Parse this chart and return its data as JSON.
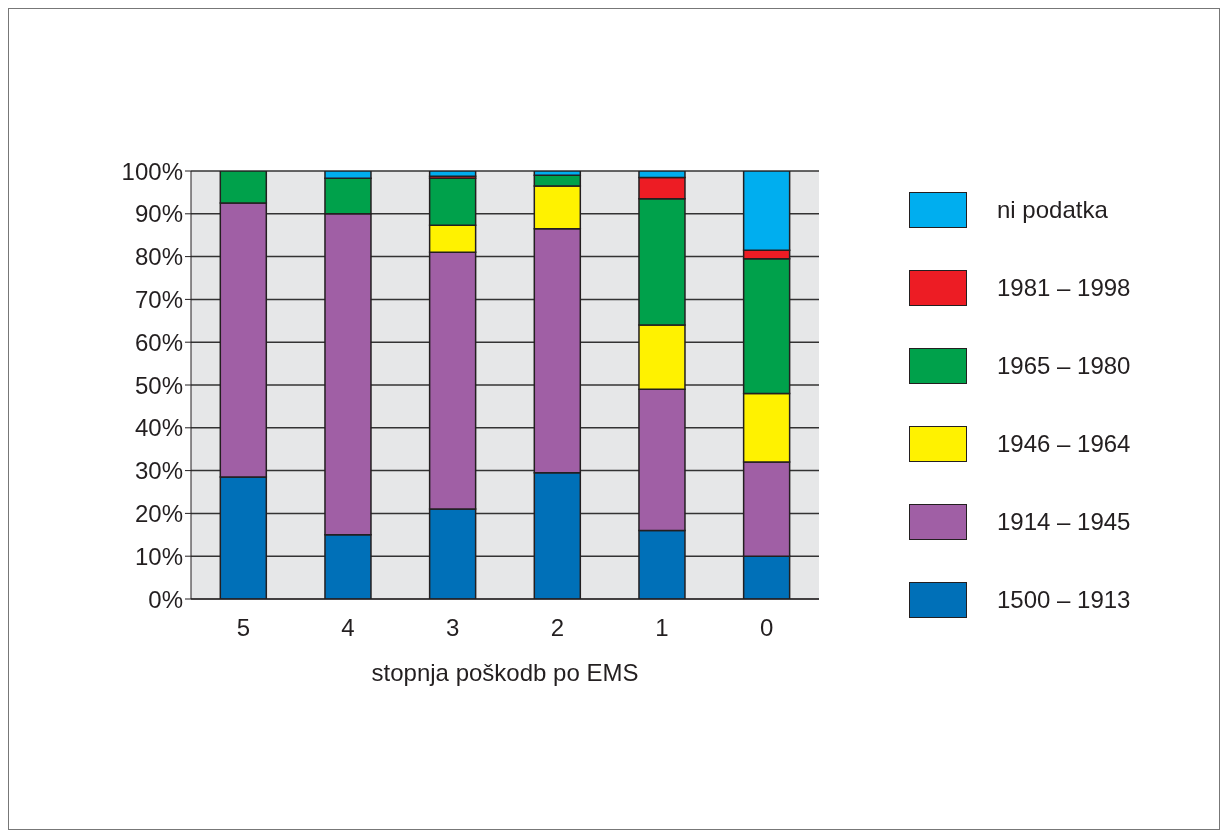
{
  "chart_data": {
    "type": "bar",
    "stacked": true,
    "xlabel": "stopnja poškodb po EMS",
    "categories": [
      "5",
      "4",
      "3",
      "2",
      "1",
      "0"
    ],
    "series": [
      {
        "name": "1500 – 1913",
        "color": "#0070b8",
        "values": [
          28.5,
          15,
          21,
          29.5,
          16,
          10
        ]
      },
      {
        "name": "1914 – 1945",
        "color": "#a05fa5",
        "values": [
          64,
          75,
          60,
          57,
          33,
          22
        ]
      },
      {
        "name": "1946 – 1964",
        "color": "#fff200",
        "values": [
          0,
          0,
          6.3,
          10,
          15,
          16
        ]
      },
      {
        "name": "1965 – 1980",
        "color": "#00a14b",
        "values": [
          7.5,
          8.3,
          11,
          2.5,
          29.5,
          31.5
        ]
      },
      {
        "name": "1981 – 1998",
        "color": "#ed1c24",
        "values": [
          0,
          0,
          0.5,
          0,
          5,
          2
        ]
      },
      {
        "name": "ni podatka",
        "color": "#00aeef",
        "values": [
          0,
          1.7,
          1.2,
          1,
          1.5,
          18.5
        ]
      }
    ],
    "ylim": [
      0,
      100
    ],
    "yticks": [
      {
        "value": 0,
        "label": "0%"
      },
      {
        "value": 10,
        "label": "10%"
      },
      {
        "value": 20,
        "label": "20%"
      },
      {
        "value": 30,
        "label": "30%"
      },
      {
        "value": 40,
        "label": "40%"
      },
      {
        "value": 50,
        "label": "50%"
      },
      {
        "value": 60,
        "label": "60%"
      },
      {
        "value": 70,
        "label": "70%"
      },
      {
        "value": 80,
        "label": "80%"
      },
      {
        "value": 90,
        "label": "90%"
      },
      {
        "value": 100,
        "label": "100%"
      }
    ],
    "grid": "y",
    "legend": "right"
  }
}
